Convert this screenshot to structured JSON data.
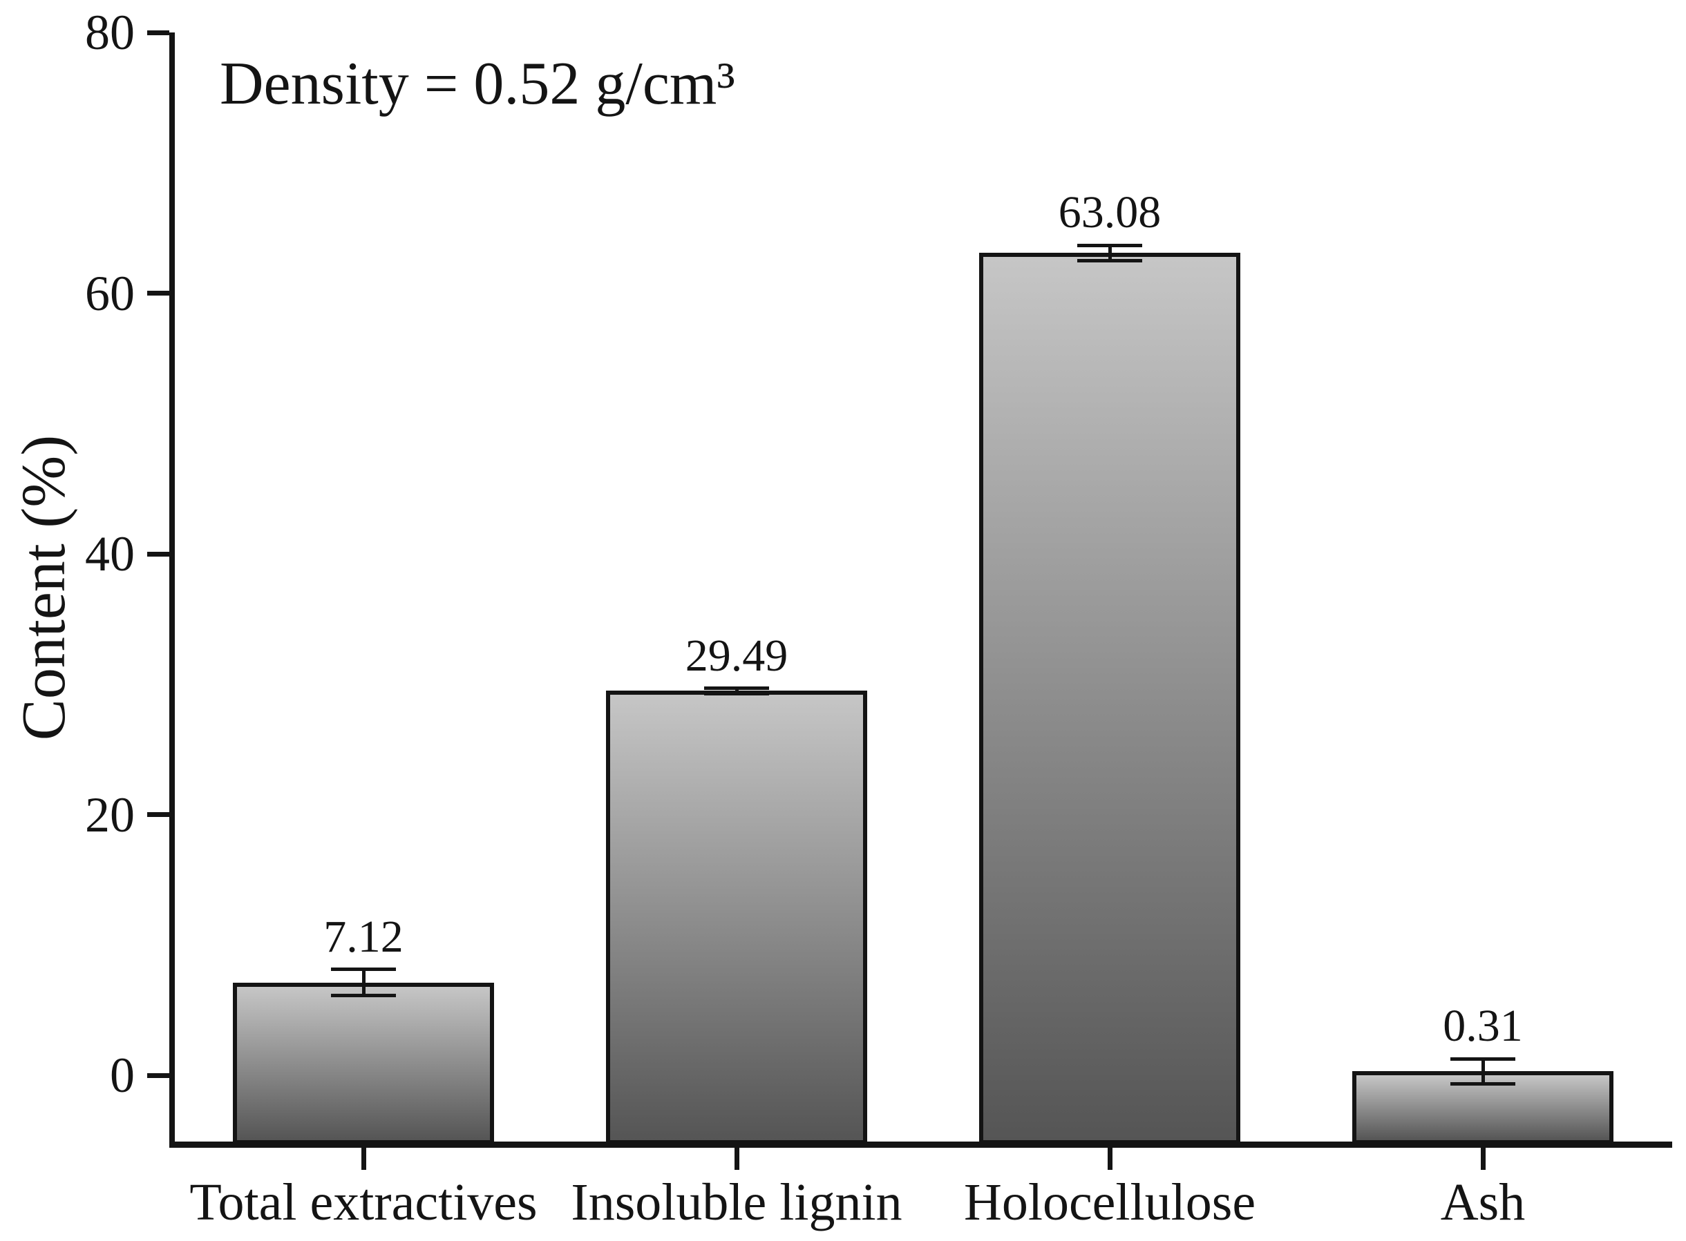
{
  "figure": {
    "background": "#ffffff",
    "ink_color": "#141414"
  },
  "chart_data": {
    "type": "bar",
    "title": "",
    "annotation": "Density = 0.52 g/cm³",
    "ylabel": "Content (%)",
    "xlabel": "",
    "categories": [
      "Total extractives",
      "Insoluble lignin",
      "Holocellulose",
      "Ash"
    ],
    "values": [
      7.12,
      29.49,
      63.08,
      0.31
    ],
    "value_labels": [
      "7.12",
      "29.49",
      "63.08",
      "0.31"
    ],
    "errors": [
      1.0,
      0.2,
      0.6,
      0.95
    ],
    "yticks": [
      0,
      20,
      40,
      60,
      80
    ],
    "ylim": [
      -5.19,
      80
    ],
    "grid": false,
    "legend": "none",
    "bar_fill_top": "#c6c6c6",
    "bar_fill_bottom": "#555555",
    "bar_border": "#141414"
  }
}
